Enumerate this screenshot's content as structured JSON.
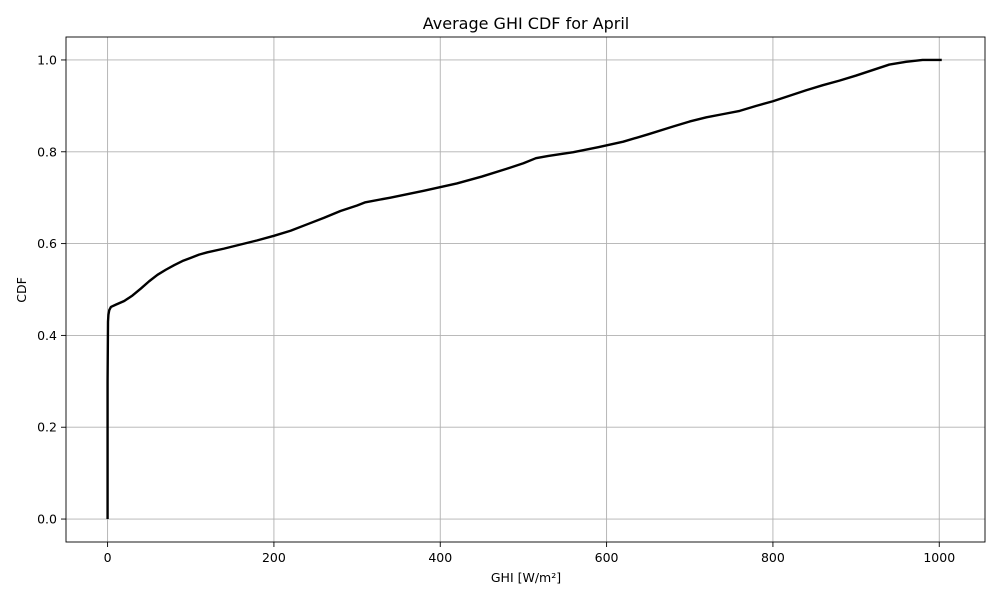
{
  "chart_data": {
    "type": "line",
    "title": "Average GHI CDF for April",
    "xlabel": "GHI [W/m²]",
    "ylabel": "CDF",
    "xlim": [
      -50,
      1055
    ],
    "ylim": [
      -0.05,
      1.05
    ],
    "x_ticks": [
      0,
      200,
      400,
      600,
      800,
      1000
    ],
    "y_ticks": [
      0.0,
      0.2,
      0.4,
      0.6,
      0.8,
      1.0
    ],
    "x_tick_labels": [
      "0",
      "200",
      "400",
      "600",
      "800",
      "1000"
    ],
    "y_tick_labels": [
      "0.0",
      "0.2",
      "0.4",
      "0.6",
      "0.8",
      "1.0"
    ],
    "grid": true,
    "series": [
      {
        "color": "#000000",
        "x": [
          0,
          0,
          0.5,
          1,
          2,
          4,
          10,
          20,
          30,
          40,
          50,
          60,
          70,
          80,
          90,
          100,
          110,
          120,
          140,
          160,
          180,
          200,
          220,
          240,
          260,
          280,
          300,
          310,
          340,
          380,
          420,
          450,
          480,
          500,
          515,
          530,
          560,
          590,
          620,
          650,
          680,
          700,
          720,
          740,
          760,
          780,
          800,
          820,
          840,
          860,
          880,
          900,
          920,
          940,
          960,
          980,
          1003
        ],
        "y": [
          0.0,
          0.3,
          0.43,
          0.445,
          0.455,
          0.462,
          0.467,
          0.475,
          0.487,
          0.502,
          0.518,
          0.532,
          0.543,
          0.553,
          0.562,
          0.569,
          0.576,
          0.581,
          0.589,
          0.598,
          0.607,
          0.617,
          0.628,
          0.642,
          0.656,
          0.671,
          0.683,
          0.69,
          0.7,
          0.715,
          0.731,
          0.746,
          0.763,
          0.775,
          0.786,
          0.791,
          0.799,
          0.81,
          0.822,
          0.838,
          0.855,
          0.866,
          0.875,
          0.882,
          0.889,
          0.9,
          0.91,
          0.922,
          0.934,
          0.945,
          0.955,
          0.966,
          0.978,
          0.99,
          0.996,
          1.0,
          1.0
        ]
      }
    ]
  }
}
